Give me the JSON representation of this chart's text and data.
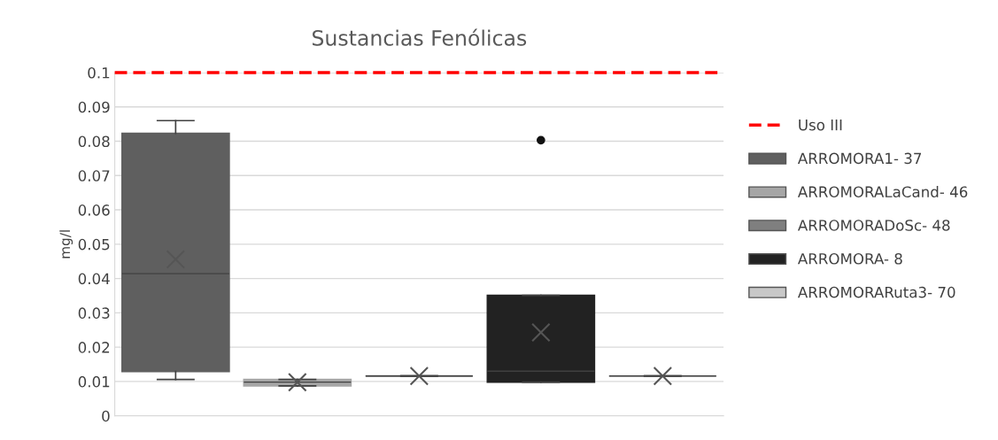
{
  "chart_data": {
    "type": "box",
    "title": "Sustancias Fenólicas",
    "ylabel": "mg/l",
    "categories": [
      null
    ],
    "series": [
      {
        "name": "ARROMORA1- 37",
        "color": "#5f5f5f",
        "boxes": [
          {
            "low": 0.0106,
            "q1": 0.0129,
            "median": 0.0414,
            "q3": 0.0823,
            "high": 0.086,
            "mean": 0.0456
          }
        ]
      },
      {
        "name": "ARROMORALaCand- 46",
        "color": "#a6a6a6",
        "boxes": [
          {
            "low": 0.0087,
            "q1": 0.0087,
            "median": 0.0098,
            "q3": 0.0106,
            "high": 0.0106,
            "mean": 0.0098
          }
        ]
      },
      {
        "name": "ARROMORADoSc- 48",
        "color": "#7f7f7f",
        "boxes": [
          {
            "low": 0.0116,
            "q1": 0.0116,
            "median": 0.0116,
            "q3": 0.0116,
            "high": 0.0116,
            "mean": 0.0116
          }
        ]
      },
      {
        "name": "ARROMORA- 8",
        "color": "#222222",
        "boxes": [
          {
            "low": 0.0098,
            "q1": 0.0098,
            "median": 0.013,
            "q3": 0.0351,
            "high": 0.0351,
            "mean": 0.0243,
            "outliers": [
              0.0803
            ]
          }
        ]
      },
      {
        "name": "ARROMORARuta3- 70",
        "color": "#c8c8c8",
        "boxes": [
          {
            "low": 0.0116,
            "q1": 0.0116,
            "median": 0.0116,
            "q3": 0.0116,
            "high": 0.0116,
            "mean": 0.0116
          }
        ]
      }
    ],
    "ylim": [
      0,
      0.1
    ],
    "yticks": [
      0,
      0.01,
      0.02,
      0.03,
      0.04,
      0.05,
      0.06,
      0.07,
      0.08,
      0.09,
      0.1
    ],
    "ref_lines": [
      {
        "axis": "y",
        "value": 0.1,
        "label": "Uso III",
        "color": "#ff0000",
        "line_style": "dashed"
      }
    ],
    "grid": "y",
    "legend": "right",
    "tick_labels": "y",
    "marker": "cross"
  }
}
